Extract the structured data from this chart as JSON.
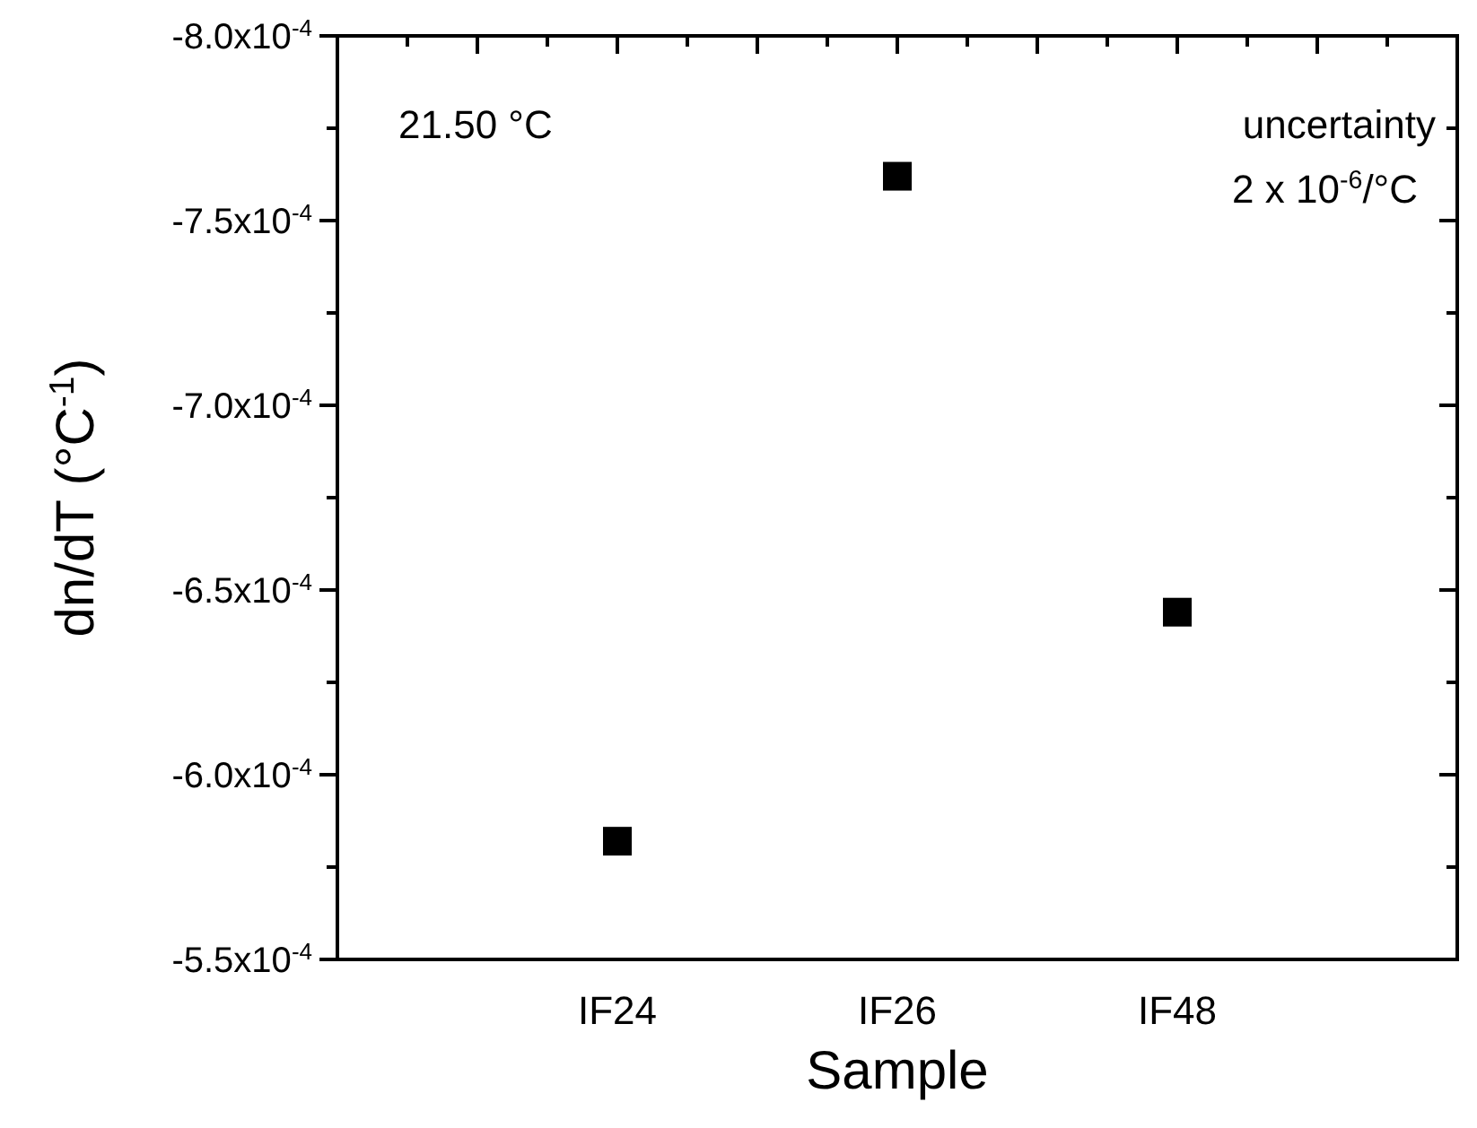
{
  "chart_data": {
    "type": "scatter",
    "xlabel": "Sample",
    "ylabel": "dn/dT (°C$^{-1}$)",
    "categories": [
      "IF24",
      "IF26",
      "IF48"
    ],
    "series": [
      {
        "color": "#000000",
        "values": [
          -0.000582,
          -0.000762,
          -0.000644
        ]
      }
    ],
    "marker": "square",
    "grid": false,
    "ylim": [
      -0.00055,
      -0.0008
    ],
    "yticks": [
      {
        "value": -0.00055,
        "label": "-5.5x10$^{-4}$"
      },
      {
        "value": -0.000575,
        "label": null
      },
      {
        "value": -0.0006,
        "label": "-6.0x10$^{-4}$"
      },
      {
        "value": -0.000625,
        "label": null
      },
      {
        "value": -0.00065,
        "label": "-6.5x10$^{-4}$"
      },
      {
        "value": -0.000675,
        "label": null
      },
      {
        "value": -0.0007,
        "label": "-7.0x10$^{-4}$"
      },
      {
        "value": -0.000725,
        "label": null
      },
      {
        "value": -0.00075,
        "label": "-7.5x10$^{-4}$"
      },
      {
        "value": -0.000775,
        "label": null
      },
      {
        "value": -0.0008,
        "label": "-8.0x10$^{-4}$"
      }
    ],
    "annotations": [
      "21.50 °C",
      "uncertainty",
      "2 x 10$^{-6}$/°C"
    ]
  }
}
